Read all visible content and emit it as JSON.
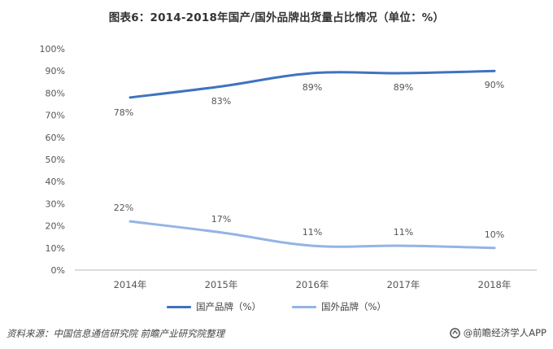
{
  "title": "图表6：2014-2018年国产/国外品牌出货量占比情况（单位：%）",
  "colors": {
    "domestic": "#3f73bf",
    "foreign": "#94b4e4",
    "axis": "#b8b8b8",
    "label": "#555555"
  },
  "chart_data": {
    "type": "line",
    "categories": [
      "2014年",
      "2015年",
      "2016年",
      "2017年",
      "2018年"
    ],
    "ylim": [
      0,
      100
    ],
    "yticks": [
      "0%",
      "10%",
      "20%",
      "30%",
      "40%",
      "50%",
      "60%",
      "70%",
      "80%",
      "90%",
      "100%"
    ],
    "grid": false,
    "legend_position": "bottom",
    "series": [
      {
        "name": "国产品牌（%）",
        "values": [
          78,
          83,
          89,
          89,
          90
        ],
        "labels": [
          "78%",
          "83%",
          "89%",
          "89%",
          "90%"
        ]
      },
      {
        "name": "国外品牌（%）",
        "values": [
          22,
          17,
          11,
          11,
          10
        ],
        "labels": [
          "22%",
          "17%",
          "11%",
          "11%",
          "10%"
        ]
      }
    ]
  },
  "footer": {
    "source": "资料来源：中国信息通信研究院 前瞻产业研究院整理",
    "brand": "@前瞻经济学人APP"
  }
}
